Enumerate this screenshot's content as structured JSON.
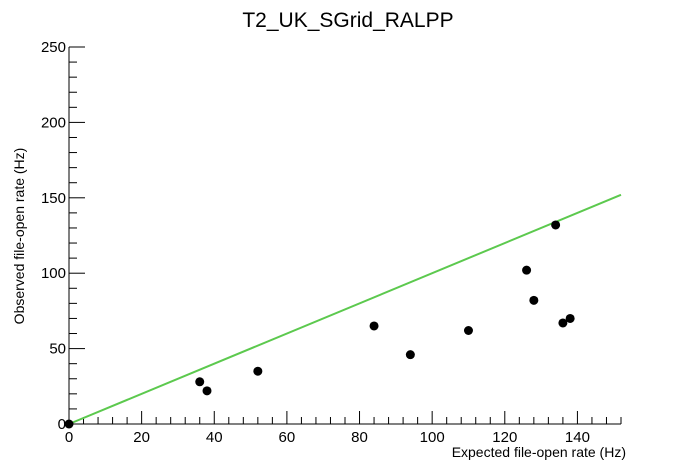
{
  "chart_data": {
    "type": "scatter",
    "title": "T2_UK_SGrid_RALPP",
    "xlabel": "Expected file-open rate (Hz)",
    "ylabel": "Observed file-open rate (Hz)",
    "xlim": [
      0,
      152
    ],
    "ylim": [
      0,
      250
    ],
    "x_ticks": [
      0,
      20,
      40,
      60,
      80,
      100,
      120,
      140
    ],
    "y_ticks": [
      0,
      50,
      100,
      150,
      200,
      250
    ],
    "grid": false,
    "points": [
      {
        "x": 0,
        "y": 0
      },
      {
        "x": 36,
        "y": 28
      },
      {
        "x": 38,
        "y": 22
      },
      {
        "x": 52,
        "y": 35
      },
      {
        "x": 84,
        "y": 65
      },
      {
        "x": 94,
        "y": 46
      },
      {
        "x": 110,
        "y": 62
      },
      {
        "x": 126,
        "y": 102
      },
      {
        "x": 128,
        "y": 82
      },
      {
        "x": 134,
        "y": 132
      },
      {
        "x": 136,
        "y": 67
      },
      {
        "x": 138,
        "y": 70
      }
    ],
    "reference_line": {
      "x": [
        0,
        152
      ],
      "y": [
        0,
        152
      ]
    },
    "colors": {
      "points": "#000000",
      "reference_line": "#5cc94e",
      "axes": "#000000"
    }
  }
}
